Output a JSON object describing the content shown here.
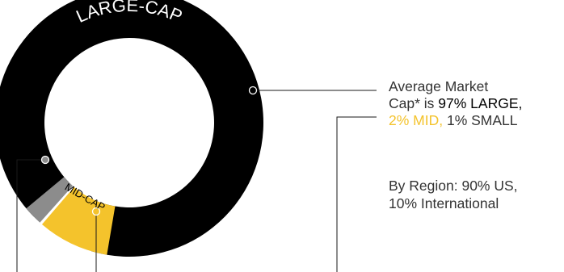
{
  "chart_data": {
    "type": "donut",
    "slices": [
      {
        "label": "LARGE-CAP",
        "value": 97,
        "color": "#000000"
      },
      {
        "label": "MID-CAP",
        "value": 2,
        "color": "#f4c32c"
      },
      {
        "label": "",
        "value": 1,
        "color": "#8c8c8c"
      }
    ]
  },
  "annotation": {
    "line1": "Average Market",
    "line2_prefix": "Cap* is ",
    "line2_large": "97% LARGE,",
    "line3_mid": "2% MID,",
    "line3_small": " 1% SMALL",
    "region_line1": "By Region: 90% US,",
    "region_line2": "10% International"
  }
}
